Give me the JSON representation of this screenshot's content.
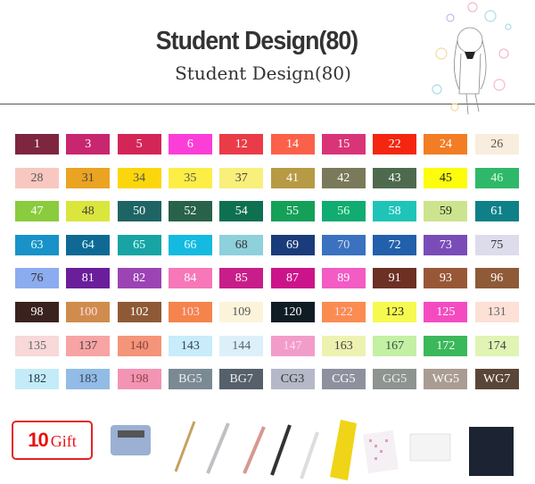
{
  "header": {
    "title": "Student Design(80)",
    "subtitle": "Student Design(80)"
  },
  "swatches": [
    {
      "label": "1",
      "color": "#7e2540",
      "text": "#fff"
    },
    {
      "label": "3",
      "color": "#c8276f",
      "text": "#fff"
    },
    {
      "label": "5",
      "color": "#d42558",
      "text": "#fff"
    },
    {
      "label": "6",
      "color": "#fb3ed7",
      "text": "#fff"
    },
    {
      "label": "12",
      "color": "#e93c48",
      "text": "#fff"
    },
    {
      "label": "14",
      "color": "#fb614a",
      "text": "#fff"
    },
    {
      "label": "15",
      "color": "#d93478",
      "text": "#fff"
    },
    {
      "label": "22",
      "color": "#f5260f",
      "text": "#fff"
    },
    {
      "label": "24",
      "color": "#f27d24",
      "text": "#fff"
    },
    {
      "label": "26",
      "color": "#f9eddd",
      "text": "#555"
    },
    {
      "label": "28",
      "color": "#f8c8c0",
      "text": "#555"
    },
    {
      "label": "31",
      "color": "#eba322",
      "text": "#444"
    },
    {
      "label": "34",
      "color": "#fcd60c",
      "text": "#555"
    },
    {
      "label": "35",
      "color": "#fcee46",
      "text": "#555"
    },
    {
      "label": "37",
      "color": "#f8f07a",
      "text": "#444"
    },
    {
      "label": "41",
      "color": "#b79a44",
      "text": "#fff"
    },
    {
      "label": "42",
      "color": "#7a7a5a",
      "text": "#fff"
    },
    {
      "label": "43",
      "color": "#4e6a4e",
      "text": "#fff"
    },
    {
      "label": "45",
      "color": "#fcfc0c",
      "text": "#222"
    },
    {
      "label": "46",
      "color": "#2fb86a",
      "text": "#dfd"
    },
    {
      "label": "47",
      "color": "#8acc3e",
      "text": "#fff"
    },
    {
      "label": "48",
      "color": "#dae63c",
      "text": "#444"
    },
    {
      "label": "50",
      "color": "#1e6464",
      "text": "#fff"
    },
    {
      "label": "52",
      "color": "#28624a",
      "text": "#fff"
    },
    {
      "label": "54",
      "color": "#0e7050",
      "text": "#fff"
    },
    {
      "label": "55",
      "color": "#15a058",
      "text": "#fff"
    },
    {
      "label": "56",
      "color": "#10ac72",
      "text": "#dfd"
    },
    {
      "label": "58",
      "color": "#1ec4b8",
      "text": "#fff"
    },
    {
      "label": "59",
      "color": "#cce48e",
      "text": "#222"
    },
    {
      "label": "61",
      "color": "#0e8088",
      "text": "#fff"
    },
    {
      "label": "63",
      "color": "#1892c8",
      "text": "#dff"
    },
    {
      "label": "64",
      "color": "#0e6a94",
      "text": "#dff"
    },
    {
      "label": "65",
      "color": "#18a4a4",
      "text": "#dff"
    },
    {
      "label": "66",
      "color": "#14bae0",
      "text": "#dff"
    },
    {
      "label": "68",
      "color": "#8ed0dc",
      "text": "#333"
    },
    {
      "label": "69",
      "color": "#1a3c7a",
      "text": "#fff"
    },
    {
      "label": "70",
      "color": "#3a72c0",
      "text": "#dde"
    },
    {
      "label": "72",
      "color": "#2260ac",
      "text": "#fff"
    },
    {
      "label": "73",
      "color": "#7a4cb8",
      "text": "#fff"
    },
    {
      "label": "75",
      "color": "#dcdcec",
      "text": "#333"
    },
    {
      "label": "76",
      "color": "#8cacf0",
      "text": "#333"
    },
    {
      "label": "81",
      "color": "#6a1e9a",
      "text": "#fff"
    },
    {
      "label": "82",
      "color": "#9c44b4",
      "text": "#fff"
    },
    {
      "label": "84",
      "color": "#f678b8",
      "text": "#fff"
    },
    {
      "label": "85",
      "color": "#c81e8a",
      "text": "#fff"
    },
    {
      "label": "87",
      "color": "#cc148a",
      "text": "#fff"
    },
    {
      "label": "89",
      "color": "#f25cc4",
      "text": "#fff"
    },
    {
      "label": "91",
      "color": "#6c3024",
      "text": "#fff"
    },
    {
      "label": "93",
      "color": "#985838",
      "text": "#fff"
    },
    {
      "label": "96",
      "color": "#8e5a38",
      "text": "#fff"
    },
    {
      "label": "98",
      "color": "#3a221e",
      "text": "#fff"
    },
    {
      "label": "100",
      "color": "#d08c4c",
      "text": "#fde"
    },
    {
      "label": "102",
      "color": "#8e5a36",
      "text": "#fff"
    },
    {
      "label": "103",
      "color": "#f4844c",
      "text": "#fde"
    },
    {
      "label": "109",
      "color": "#fcf4da",
      "text": "#555"
    },
    {
      "label": "120",
      "color": "#101c24",
      "text": "#fff"
    },
    {
      "label": "122",
      "color": "#fa8c52",
      "text": "#fde"
    },
    {
      "label": "123",
      "color": "#f6fa50",
      "text": "#222"
    },
    {
      "label": "125",
      "color": "#f44cc0",
      "text": "#fff"
    },
    {
      "label": "131",
      "color": "#fde0d6",
      "text": "#666"
    },
    {
      "label": "135",
      "color": "#f8d8d8",
      "text": "#666"
    },
    {
      "label": "137",
      "color": "#f8a4a4",
      "text": "#444"
    },
    {
      "label": "140",
      "color": "#f49478",
      "text": "#844"
    },
    {
      "label": "143",
      "color": "#c8ecfa",
      "text": "#345"
    },
    {
      "label": "144",
      "color": "#dcf0fa",
      "text": "#567"
    },
    {
      "label": "147",
      "color": "#f29cca",
      "text": "#fde"
    },
    {
      "label": "163",
      "color": "#eef2b0",
      "text": "#444"
    },
    {
      "label": "167",
      "color": "#c4f0a4",
      "text": "#354"
    },
    {
      "label": "172",
      "color": "#3ab85a",
      "text": "#fff"
    },
    {
      "label": "174",
      "color": "#e0f4b4",
      "text": "#444"
    },
    {
      "label": "182",
      "color": "#c4ecf8",
      "text": "#234"
    },
    {
      "label": "183",
      "color": "#92bce6",
      "text": "#345"
    },
    {
      "label": "198",
      "color": "#f494b4",
      "text": "#844"
    },
    {
      "label": "BG5",
      "color": "#7a8a94",
      "text": "#eee"
    },
    {
      "label": "BG7",
      "color": "#56606a",
      "text": "#eee"
    },
    {
      "label": "CG3",
      "color": "#b4b8c8",
      "text": "#333"
    },
    {
      "label": "CG5",
      "color": "#8e909e",
      "text": "#fff"
    },
    {
      "label": "GG5",
      "color": "#8e9490",
      "text": "#eee"
    },
    {
      "label": "WG5",
      "color": "#aa9c92",
      "text": "#fff"
    },
    {
      "label": "WG7",
      "color": "#5a4638",
      "text": "#fff"
    }
  ],
  "gift": {
    "count": "10",
    "label": "Gift",
    "accent": "#e52222"
  }
}
